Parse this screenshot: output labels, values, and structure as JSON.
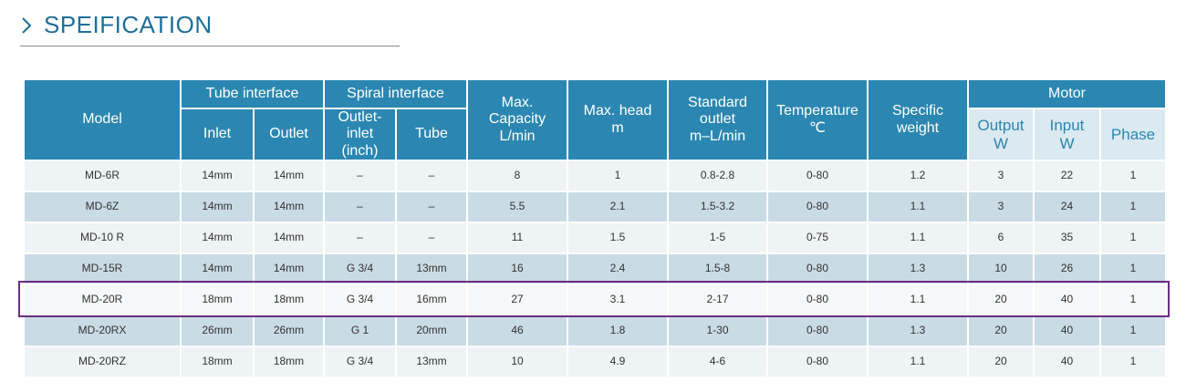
{
  "header": {
    "title": "SPEIFICATION"
  },
  "table": {
    "group_headers": [
      [
        "Model"
      ],
      [
        "Tube interface"
      ],
      [
        "Spiral interface"
      ],
      [
        "Max.",
        "Capacity",
        "L/min"
      ],
      [
        "Max. head",
        "m"
      ],
      [
        "Standard",
        "outlet",
        "m–L/min"
      ],
      [
        "Temperature",
        "℃"
      ],
      [
        "Specific",
        "weight"
      ],
      [
        "Motor"
      ]
    ],
    "sub_headers": [
      [
        "Inlet"
      ],
      [
        "Outlet"
      ],
      [
        "Outlet-inlet",
        "(inch)"
      ],
      [
        "Tube"
      ],
      [
        "Output",
        "W"
      ],
      [
        "Input",
        "W"
      ],
      [
        "Phase"
      ]
    ],
    "rows": [
      [
        "MD-6R",
        "14mm",
        "14mm",
        "–",
        "–",
        "8",
        "1",
        "0.8-2.8",
        "0-80",
        "1.2",
        "3",
        "22",
        "1"
      ],
      [
        "MD-6Z",
        "14mm",
        "14mm",
        "–",
        "–",
        "5.5",
        "2.1",
        "1.5-3.2",
        "0-80",
        "1.1",
        "3",
        "24",
        "1"
      ],
      [
        "MD-10 R",
        "14mm",
        "14mm",
        "–",
        "–",
        "11",
        "1.5",
        "1-5",
        "0-75",
        "1.1",
        "6",
        "35",
        "1"
      ],
      [
        "MD-15R",
        "14mm",
        "14mm",
        "G 3/4",
        "13mm",
        "16",
        "2.4",
        "1.5-8",
        "0-80",
        "1.3",
        "10",
        "26",
        "1"
      ],
      [
        "MD-20R",
        "18mm",
        "18mm",
        "G 3/4",
        "16mm",
        "27",
        "3.1",
        "2-17",
        "0-80",
        "1.1",
        "20",
        "40",
        "1"
      ],
      [
        "MD-20RX",
        "26mm",
        "26mm",
        "G 1",
        "20mm",
        "46",
        "1.8",
        "1-30",
        "0-80",
        "1.3",
        "20",
        "40",
        "1"
      ],
      [
        "MD-20RZ",
        "18mm",
        "18mm",
        "G 3/4",
        "13mm",
        "10",
        "4.9",
        "4-6",
        "0-80",
        "1.1",
        "20",
        "40",
        "1"
      ]
    ]
  }
}
